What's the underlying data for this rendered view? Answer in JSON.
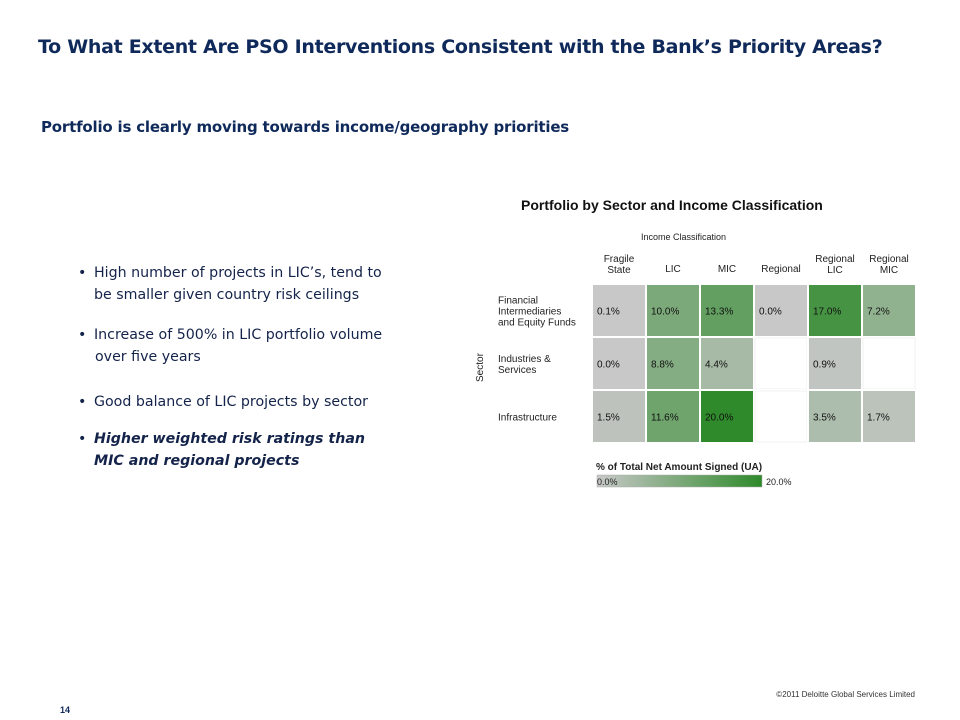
{
  "slide": {
    "title": "To What Extent Are PSO Interventions Consistent with the Bank’s Priority Areas?",
    "subtitle": "Portfolio is clearly moving towards income/geography priorities",
    "bullets": [
      {
        "line1": "High number of projects in LIC’s, tend to",
        "line2": "be smaller given country risk ceilings"
      },
      {
        "line1": "Increase of 500% in LIC portfolio volume",
        "line2": "over five years"
      },
      {
        "line1": "Good balance of LIC projects by sector",
        "line2": ""
      },
      {
        "line1": "Higher weighted risk ratings than",
        "line2": "MIC and regional projects"
      }
    ],
    "bullet_char": "•",
    "copyright": "©2011 Deloitte Global Services Limited",
    "page_number": "14"
  },
  "chart_data": {
    "type": "heatmap",
    "title": "Portfolio by Sector and Income Classification",
    "xlabel": "Income Classification",
    "ylabel": "Sector",
    "columns": [
      "Fragile State",
      "LIC",
      "MIC",
      "Regional",
      "Regional LIC",
      "Regional MIC"
    ],
    "rows": [
      "Financial Intermediaries and Equity Funds",
      "Industries & Services",
      "Infrastructure"
    ],
    "values": [
      [
        0.1,
        10.0,
        13.3,
        0.0,
        17.0,
        7.2
      ],
      [
        0.0,
        8.8,
        4.4,
        null,
        0.9,
        null
      ],
      [
        1.5,
        11.6,
        20.0,
        null,
        3.5,
        1.7
      ]
    ],
    "labels": [
      [
        "0.1%",
        "10.0%",
        "13.3%",
        "0.0%",
        "17.0%",
        "7.2%"
      ],
      [
        "0.0%",
        "8.8%",
        "4.4%",
        "",
        "0.9%",
        ""
      ],
      [
        "1.5%",
        "11.6%",
        "20.0%",
        "",
        "3.5%",
        "1.7%"
      ]
    ],
    "color_scale": {
      "min": 0.0,
      "max": 20.0,
      "min_color": "#c8c8c8",
      "max_color": "#2f8a2b"
    },
    "legend": {
      "title": "% of Total Net Amount Signed (UA)",
      "min_label": "0.0%",
      "max_label": "20.0%"
    }
  }
}
